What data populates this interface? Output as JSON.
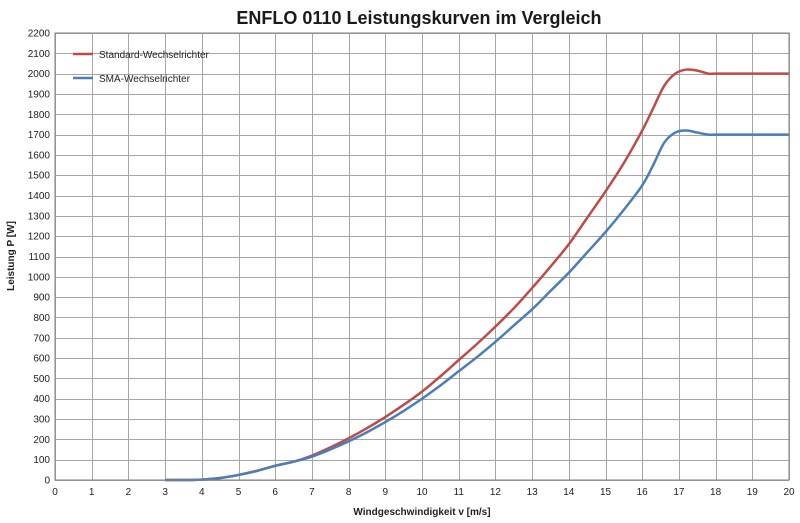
{
  "chart_data": {
    "type": "line",
    "title": "ENFLO 0110 Leistungskurven im Vergleich",
    "xlabel": "Windgeschwindigkeit v [m/s]",
    "ylabel": "Leistung P [W]",
    "xlim": [
      0,
      20
    ],
    "ylim": [
      0,
      2200
    ],
    "x_ticks": [
      0,
      1,
      2,
      3,
      4,
      5,
      6,
      7,
      8,
      9,
      10,
      11,
      12,
      13,
      14,
      15,
      16,
      17,
      18,
      19,
      20
    ],
    "y_ticks": [
      0,
      100,
      200,
      300,
      400,
      500,
      600,
      700,
      800,
      900,
      1000,
      1100,
      1200,
      1300,
      1400,
      1500,
      1600,
      1700,
      1800,
      1900,
      2000,
      2100,
      2200
    ],
    "grid": true,
    "legend_position": "top-left",
    "series": [
      {
        "name": "Standard-Wechselrichter",
        "color": "#be4b48",
        "x": [
          3,
          3.5,
          4,
          4.5,
          5,
          5.5,
          6,
          6.5,
          7,
          7.5,
          8,
          8.5,
          9,
          9.5,
          10,
          10.5,
          11,
          11.5,
          12,
          12.5,
          13,
          13.5,
          14,
          14.5,
          15,
          15.5,
          16,
          16.3,
          16.6,
          16.9,
          17.2,
          17.5,
          17.8,
          18,
          19,
          20
        ],
        "y": [
          0,
          0,
          2,
          10,
          25,
          45,
          70,
          90,
          120,
          160,
          205,
          255,
          310,
          370,
          435,
          510,
          590,
          670,
          755,
          845,
          945,
          1050,
          1160,
          1290,
          1420,
          1560,
          1720,
          1830,
          1940,
          2000,
          2020,
          2015,
          2000,
          2000,
          2000,
          2000
        ]
      },
      {
        "name": "SMA-Wechselrichter",
        "color": "#4a7ebb",
        "x": [
          3,
          3.5,
          4,
          4.5,
          5,
          5.5,
          6,
          6.5,
          7,
          7.5,
          8,
          8.5,
          9,
          9.5,
          10,
          10.5,
          11,
          11.5,
          12,
          12.5,
          13,
          13.5,
          14,
          14.5,
          15,
          15.5,
          16,
          16.3,
          16.6,
          16.9,
          17.2,
          17.5,
          17.8,
          18,
          19,
          20
        ],
        "y": [
          0,
          0,
          2,
          10,
          25,
          45,
          70,
          90,
          115,
          150,
          190,
          235,
          285,
          340,
          400,
          465,
          535,
          605,
          680,
          760,
          840,
          930,
          1020,
          1120,
          1220,
          1330,
          1450,
          1550,
          1660,
          1710,
          1720,
          1710,
          1700,
          1700,
          1700,
          1700
        ]
      }
    ]
  }
}
